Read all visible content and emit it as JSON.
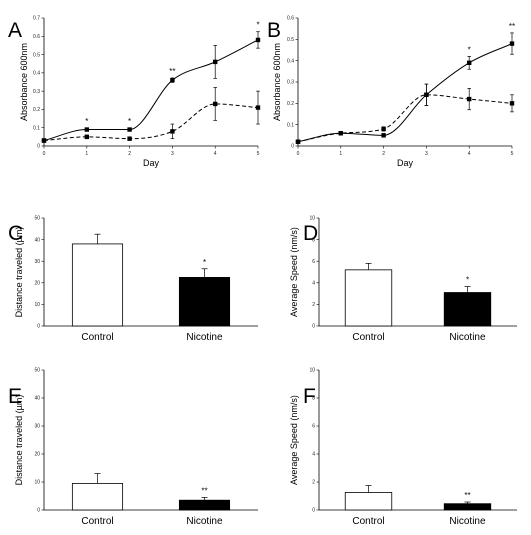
{
  "chart_data": [
    {
      "panel": "A",
      "type": "line",
      "xlabel": "Day",
      "ylabel": "Absorbance 600nm",
      "x": [
        0,
        1,
        2,
        3,
        4,
        5
      ],
      "xlim": [
        0,
        5
      ],
      "ylim": [
        0,
        0.7
      ],
      "yticks": [
        "0",
        "0.1",
        "0.2",
        "0.3",
        "0.4",
        "0.5",
        "0.6",
        "0.7"
      ],
      "series": [
        {
          "style": "solid",
          "values": [
            0.03,
            0.09,
            0.09,
            0.36,
            0.46,
            0.58
          ],
          "errors": [
            0.005,
            0.008,
            0.008,
            0.012,
            0.09,
            0.045
          ]
        },
        {
          "style": "dashed",
          "values": [
            0.03,
            0.05,
            0.04,
            0.08,
            0.23,
            0.21
          ],
          "errors": [
            0.005,
            0.01,
            0.008,
            0.04,
            0.09,
            0.09
          ]
        }
      ],
      "significance": [
        {
          "x": 1,
          "label": "*"
        },
        {
          "x": 2,
          "label": "*"
        },
        {
          "x": 3,
          "label": "**"
        },
        {
          "x": 5,
          "label": "*"
        }
      ]
    },
    {
      "panel": "B",
      "type": "line",
      "xlabel": "Day",
      "ylabel": "Absorbance 600nm",
      "x": [
        0,
        1,
        2,
        3,
        4,
        5
      ],
      "xlim": [
        0,
        5
      ],
      "ylim": [
        0,
        0.6
      ],
      "yticks": [
        "0",
        "0.1",
        "0.2",
        "0.3",
        "0.4",
        "0.5",
        "0.6"
      ],
      "series": [
        {
          "style": "solid",
          "values": [
            0.02,
            0.06,
            0.05,
            0.24,
            0.39,
            0.48
          ],
          "errors": [
            0.005,
            0.008,
            0.008,
            0.05,
            0.03,
            0.05
          ]
        },
        {
          "style": "dashed",
          "values": [
            0.02,
            0.06,
            0.08,
            0.24,
            0.22,
            0.2
          ],
          "errors": [
            0.005,
            0.008,
            0.01,
            0.05,
            0.05,
            0.04
          ]
        }
      ],
      "significance": [
        {
          "x": 4,
          "label": "*"
        },
        {
          "x": 5,
          "label": "**"
        }
      ]
    },
    {
      "panel": "C",
      "type": "bar",
      "ylabel": "Distance traveled (µm)",
      "categories": [
        "Control",
        "Nicotine"
      ],
      "values": [
        38,
        22.5
      ],
      "errors": [
        4.5,
        4
      ],
      "fills": [
        "#ffffff",
        "#000000"
      ],
      "ylim": [
        0,
        50
      ],
      "yticks": [
        "0",
        "10",
        "20",
        "30",
        "40",
        "50"
      ],
      "significance": [
        {
          "index": 1,
          "label": "*"
        }
      ]
    },
    {
      "panel": "D",
      "type": "bar",
      "ylabel": "Average Speed (nm/s)",
      "categories": [
        "Control",
        "Nicotine"
      ],
      "values": [
        5.2,
        3.1
      ],
      "errors": [
        0.6,
        0.55
      ],
      "fills": [
        "#ffffff",
        "#000000"
      ],
      "ylim": [
        0,
        10
      ],
      "yticks": [
        "0",
        "2",
        "4",
        "6",
        "8",
        "10"
      ],
      "significance": [
        {
          "index": 1,
          "label": "*"
        }
      ]
    },
    {
      "panel": "E",
      "type": "bar",
      "ylabel": "Distance traveled (µm)",
      "categories": [
        "Control",
        "Nicotine"
      ],
      "values": [
        9.5,
        3.5
      ],
      "errors": [
        3.5,
        1
      ],
      "fills": [
        "#ffffff",
        "#000000"
      ],
      "ylim": [
        0,
        50
      ],
      "yticks": [
        "0",
        "10",
        "20",
        "30",
        "40",
        "50"
      ],
      "significance": [
        {
          "index": 1,
          "label": "**"
        }
      ]
    },
    {
      "panel": "F",
      "type": "bar",
      "ylabel": "Average Speed (nm/s)",
      "categories": [
        "Control",
        "Nicotine"
      ],
      "values": [
        1.25,
        0.45
      ],
      "errors": [
        0.5,
        0.12
      ],
      "fills": [
        "#ffffff",
        "#000000"
      ],
      "ylim": [
        0,
        10
      ],
      "yticks": [
        "0",
        "2",
        "4",
        "6",
        "8",
        "10"
      ],
      "significance": [
        {
          "index": 1,
          "label": "**"
        }
      ]
    }
  ]
}
